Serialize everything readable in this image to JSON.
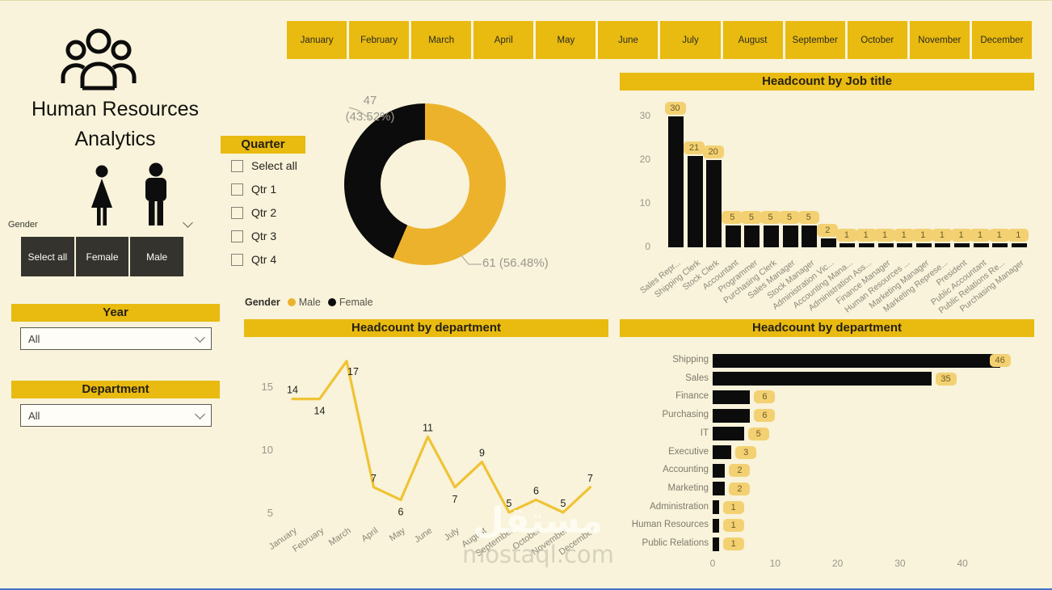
{
  "sidebar": {
    "title_line1": "Human Resources",
    "title_line2": "Analytics",
    "gender_label": "Gender",
    "gender_buttons": [
      "Select all",
      "Female",
      "Male"
    ],
    "year": {
      "label": "Year",
      "value": "All"
    },
    "department": {
      "label": "Department",
      "value": "All"
    }
  },
  "months": [
    "January",
    "February",
    "March",
    "April",
    "May",
    "June",
    "July",
    "August",
    "September",
    "October",
    "November",
    "December"
  ],
  "quarter": {
    "title": "Quarter",
    "options": [
      "Select all",
      "Qtr 1",
      "Qtr 2",
      "Qtr 3",
      "Qtr 4"
    ]
  },
  "watermark": {
    "line1": "مستقل",
    "line2": "mostaql.com"
  },
  "colors": {
    "banner_gold": "#E9BA10",
    "chart_gold": "#ECB22C",
    "line_gold": "#F0C335",
    "pill_bg": "#F3D172",
    "black": "#0c0c0c",
    "background": "#F8F3DA",
    "axis_text": "#9a968c"
  },
  "chart_data": [
    {
      "id": "gender_donut",
      "type": "pie",
      "legend_title": "Gender",
      "series": [
        {
          "name": "Male",
          "value": 61,
          "pct": "56.48%",
          "color": "#ECB22C"
        },
        {
          "name": "Female",
          "value": 47,
          "pct": "43.52%",
          "color": "#0c0c0c"
        }
      ],
      "labels": {
        "female_value": "47",
        "female_pct": "(43.52%)",
        "male": "61 (56.48%)"
      }
    },
    {
      "id": "job_title_bar",
      "type": "bar",
      "title": "Headcount by Job title",
      "categories": [
        "Sales Repr...",
        "Shipping Clerk",
        "Stock Clerk",
        "Accountant",
        "Programmer",
        "Purchasing Clerk",
        "Sales Manager",
        "Stock Manager",
        "Administration Vic...",
        "Accounting Mana...",
        "Administration Ass...",
        "Finance Manager",
        "Human Resources ...",
        "Marketing Manager",
        "Marketing Represe...",
        "President",
        "Public Accountant",
        "Public Relations Re...",
        "Purchasing Manager"
      ],
      "values": [
        30,
        21,
        20,
        5,
        5,
        5,
        5,
        5,
        2,
        1,
        1,
        1,
        1,
        1,
        1,
        1,
        1,
        1,
        1
      ],
      "y_ticks": [
        30,
        20,
        10,
        0
      ],
      "ylim": [
        0,
        30
      ],
      "grid": false,
      "legend": "none"
    },
    {
      "id": "monthly_headcount_line",
      "type": "line",
      "title": "Headcount by department",
      "categories": [
        "January",
        "February",
        "March",
        "April",
        "May",
        "June",
        "July",
        "August",
        "September",
        "October",
        "November",
        "December"
      ],
      "values": [
        14,
        14,
        17,
        7,
        6,
        11,
        7,
        9,
        5,
        6,
        5,
        7
      ],
      "y_ticks": [
        15,
        10,
        5
      ],
      "ylim": [
        5,
        18
      ],
      "grid": false,
      "legend": "none"
    },
    {
      "id": "dept_bar_horizontal",
      "type": "bar",
      "orientation": "horizontal",
      "title": "Headcount by department",
      "categories": [
        "Shipping",
        "Sales",
        "Finance",
        "Purchasing",
        "IT",
        "Executive",
        "Accounting",
        "Marketing",
        "Administration",
        "Human Resources",
        "Public Relations"
      ],
      "values": [
        46,
        35,
        6,
        6,
        5,
        3,
        2,
        2,
        1,
        1,
        1
      ],
      "x_ticks": [
        0,
        10,
        20,
        30,
        40
      ],
      "xlim": [
        0,
        48
      ],
      "grid": false,
      "legend": "none"
    }
  ]
}
